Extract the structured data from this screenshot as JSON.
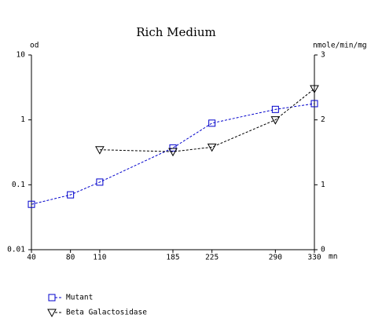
{
  "chart_data": {
    "type": "line",
    "title": "Rich Medium",
    "ylabel": "od",
    "y2label": "nmole/min/mg",
    "xlabel": "mn",
    "x": [
      40,
      80,
      110,
      185,
      225,
      290,
      330
    ],
    "xlim": [
      40,
      330
    ],
    "xticks": [
      40,
      80,
      110,
      185,
      225,
      290,
      330
    ],
    "ylim": [
      0.01,
      10
    ],
    "yticks": [
      0.01,
      0.1,
      1,
      10
    ],
    "ylog": true,
    "y2lim": [
      0,
      3
    ],
    "y2ticks": [
      0,
      1,
      2,
      3
    ],
    "series": [
      {
        "name": "Mutant",
        "color": "#0000cc",
        "marker": "square",
        "axis": "y",
        "values": [
          0.05,
          0.07,
          0.11,
          0.37,
          0.89,
          1.45,
          1.78
        ]
      },
      {
        "name": "Beta Galactosidase",
        "color": "#000000",
        "marker": "triangle-down",
        "axis": "y2",
        "values": [
          null,
          null,
          1.54,
          1.51,
          1.58,
          2.0,
          2.48
        ]
      }
    ]
  }
}
